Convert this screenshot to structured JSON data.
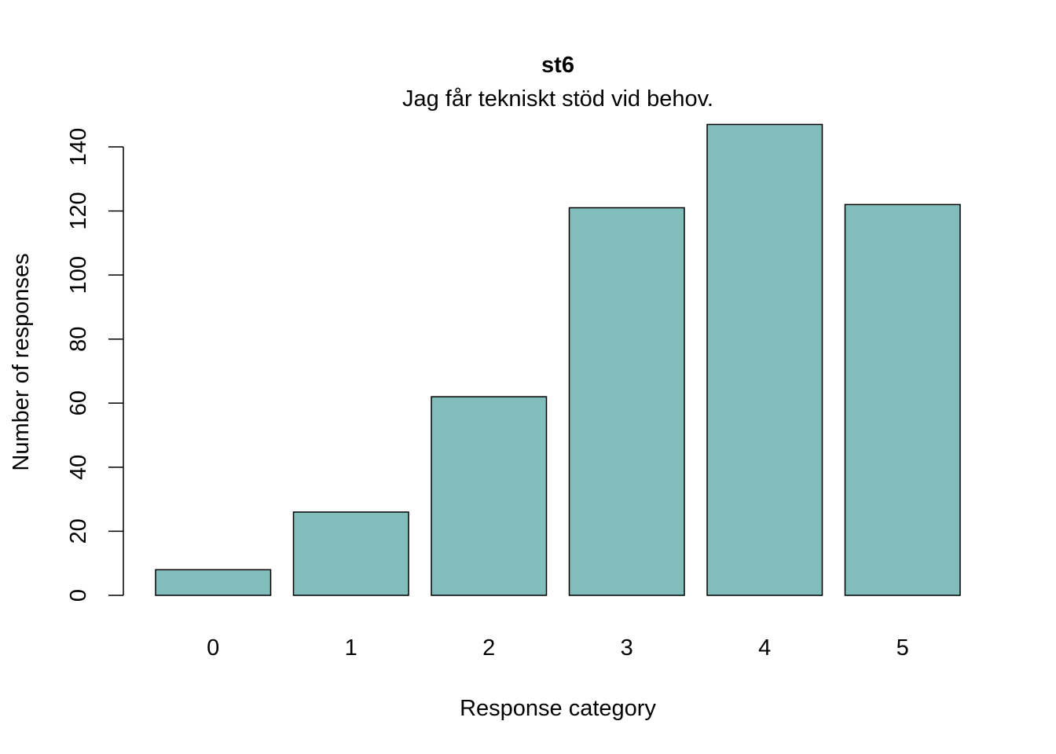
{
  "chart_data": {
    "type": "bar",
    "title": "st6",
    "subtitle": "Jag får tekniskt stöd vid behov.",
    "xlabel": "Response category",
    "ylabel": "Number of responses",
    "categories": [
      "0",
      "1",
      "2",
      "3",
      "4",
      "5"
    ],
    "values": [
      8,
      26,
      62,
      121,
      147,
      122
    ],
    "ylim": [
      0,
      140
    ],
    "yticks": [
      0,
      20,
      40,
      60,
      80,
      100,
      120,
      140
    ],
    "grid": false,
    "legend": "none",
    "bar_color": "#80BDBB",
    "bar_edge_color": "#000000"
  }
}
